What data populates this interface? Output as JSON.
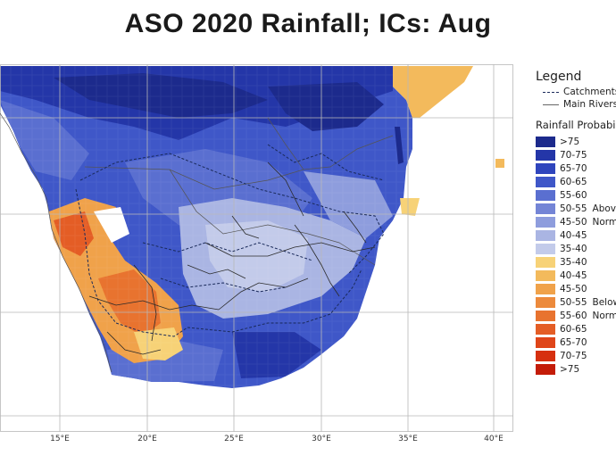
{
  "title": "ASO 2020 Rainfall; ICs: Aug",
  "legend": {
    "title": "Legend",
    "lines": [
      {
        "label": "Catchments",
        "style": "dash"
      },
      {
        "label": "Main Rivers",
        "style": "solid"
      }
    ],
    "probability_title": "Rainfall Probability",
    "classes": [
      {
        "label": ">75",
        "color": "#1c2a8c",
        "category": ""
      },
      {
        "label": "70-75",
        "color": "#2436a8",
        "category": ""
      },
      {
        "label": "65-70",
        "color": "#2f45bd",
        "category": ""
      },
      {
        "label": "60-65",
        "color": "#3f57c8",
        "category": ""
      },
      {
        "label": "55-60",
        "color": "#5a6fd0",
        "category": ""
      },
      {
        "label": "50-55",
        "color": "#7485d6",
        "category": "Above"
      },
      {
        "label": "45-50",
        "color": "#8e9ddd",
        "category": "Normal"
      },
      {
        "label": "40-45",
        "color": "#aab5e3",
        "category": ""
      },
      {
        "label": "35-40",
        "color": "#c3cbea",
        "category": ""
      },
      {
        "label": "35-40",
        "color": "#f7d277",
        "category": ""
      },
      {
        "label": "40-45",
        "color": "#f3ba5c",
        "category": ""
      },
      {
        "label": "45-50",
        "color": "#f0a24a",
        "category": ""
      },
      {
        "label": "50-55",
        "color": "#ec8a3c",
        "category": "Below"
      },
      {
        "label": "55-60",
        "color": "#e8732f",
        "category": "Normal"
      },
      {
        "label": "60-65",
        "color": "#e45d25",
        "category": ""
      },
      {
        "label": "65-70",
        "color": "#df4519",
        "category": ""
      },
      {
        "label": "70-75",
        "color": "#d6300f",
        "category": ""
      },
      {
        "label": ">75",
        "color": "#c41c08",
        "category": ""
      }
    ]
  },
  "axes": {
    "lon_ticks": [
      "15°E",
      "20°E",
      "25°E",
      "30°E",
      "35°E",
      "40°E"
    ]
  }
}
